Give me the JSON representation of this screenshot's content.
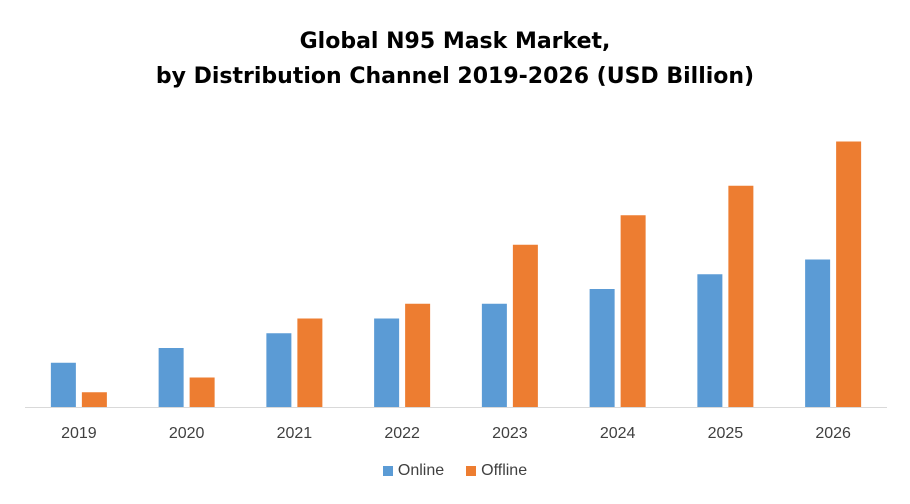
{
  "chart_data": {
    "type": "bar",
    "title": "Global N95 Mask Market,",
    "subtitle": "by Distribution Channel 2019-2026 (USD Billion)",
    "xlabel": "",
    "ylabel": "",
    "categories": [
      "2019",
      "2020",
      "2021",
      "2022",
      "2023",
      "2024",
      "2025",
      "2026"
    ],
    "series": [
      {
        "name": "Online",
        "color": "#5B9BD5",
        "values": [
          1.5,
          2.0,
          2.5,
          3.0,
          3.5,
          4.0,
          4.5,
          5.0
        ]
      },
      {
        "name": "Offline",
        "color": "#ED7D31",
        "values": [
          0.5,
          1.0,
          3.0,
          3.5,
          5.5,
          6.5,
          7.5,
          9.0
        ]
      }
    ],
    "ylim": [
      0,
      10
    ],
    "grid": false,
    "legend": "bottom",
    "axis_color": "#D9D9D9",
    "tick_label_color": "#404040"
  }
}
